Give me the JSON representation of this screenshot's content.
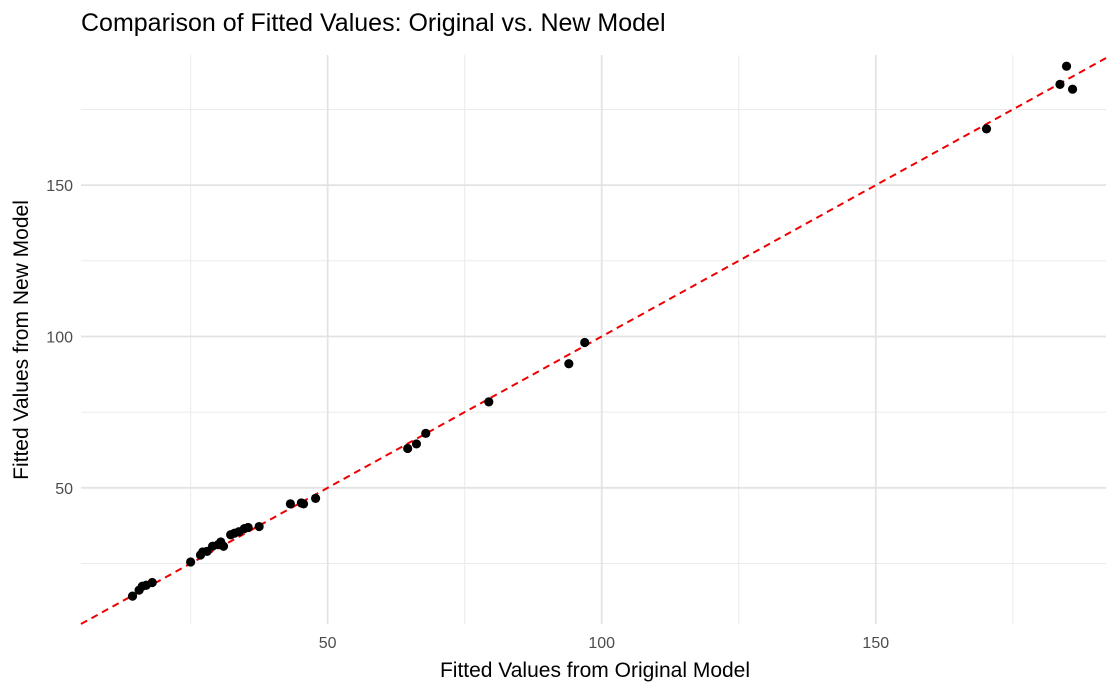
{
  "chart_data": {
    "type": "scatter",
    "title": "Comparison of Fitted Values: Original vs. New Model",
    "xlabel": "Fitted Values from Original Model",
    "ylabel": "Fitted Values from New Model",
    "xlim": [
      5,
      192
    ],
    "ylim": [
      5,
      193
    ],
    "xticks": [
      50,
      100,
      150
    ],
    "yticks": [
      50,
      100,
      150
    ],
    "grid": true,
    "legend": "none",
    "point_color": "#000000",
    "reference_line": {
      "type": "identity",
      "slope": 1,
      "intercept": 0,
      "style": "dashed",
      "color": "#ee0000"
    },
    "points": [
      {
        "x": 14.4,
        "y": 14.2
      },
      {
        "x": 15.6,
        "y": 16.2
      },
      {
        "x": 16.2,
        "y": 17.5
      },
      {
        "x": 16.9,
        "y": 17.8
      },
      {
        "x": 18.0,
        "y": 18.7
      },
      {
        "x": 25.0,
        "y": 25.5
      },
      {
        "x": 26.8,
        "y": 27.8
      },
      {
        "x": 27.2,
        "y": 28.8
      },
      {
        "x": 28.0,
        "y": 29.0
      },
      {
        "x": 29.0,
        "y": 30.7
      },
      {
        "x": 30.0,
        "y": 31.2
      },
      {
        "x": 30.5,
        "y": 32.1
      },
      {
        "x": 31.0,
        "y": 30.7
      },
      {
        "x": 32.3,
        "y": 34.5
      },
      {
        "x": 33.0,
        "y": 35.0
      },
      {
        "x": 33.8,
        "y": 35.5
      },
      {
        "x": 34.8,
        "y": 36.5
      },
      {
        "x": 35.5,
        "y": 36.9
      },
      {
        "x": 37.5,
        "y": 37.2
      },
      {
        "x": 43.2,
        "y": 44.7
      },
      {
        "x": 45.2,
        "y": 45.0
      },
      {
        "x": 45.6,
        "y": 44.7
      },
      {
        "x": 47.8,
        "y": 46.5
      },
      {
        "x": 64.6,
        "y": 63.0
      },
      {
        "x": 66.2,
        "y": 64.5
      },
      {
        "x": 67.9,
        "y": 68.0
      },
      {
        "x": 79.4,
        "y": 78.4
      },
      {
        "x": 94.0,
        "y": 91.0
      },
      {
        "x": 96.9,
        "y": 98.0
      },
      {
        "x": 170.2,
        "y": 168.6
      },
      {
        "x": 183.6,
        "y": 183.3
      },
      {
        "x": 184.8,
        "y": 189.3
      },
      {
        "x": 185.9,
        "y": 181.7
      }
    ]
  }
}
